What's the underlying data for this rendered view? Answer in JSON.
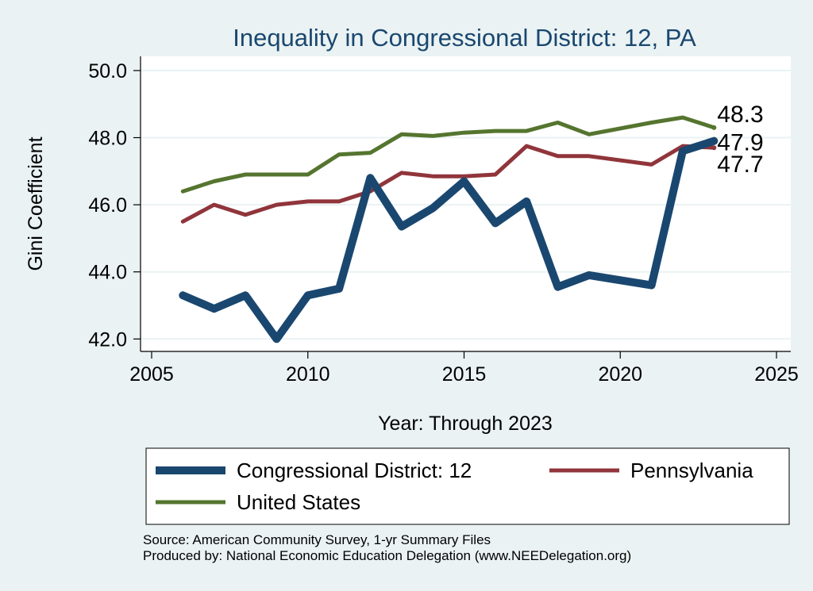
{
  "chart_data": {
    "type": "line",
    "title": "Inequality in Congressional District:  12, PA",
    "xlabel": "Year: Through 2023",
    "ylabel": "Gini Coefficient",
    "xlim": [
      2005,
      2025
    ],
    "ylim": [
      41.7,
      50.4
    ],
    "x_ticks": [
      2005,
      2010,
      2015,
      2020,
      2025
    ],
    "y_ticks": [
      42.0,
      44.0,
      46.0,
      48.0,
      50.0
    ],
    "y_tick_labels": [
      "42.0",
      "44.0",
      "46.0",
      "48.0",
      "50.0"
    ],
    "grid": true,
    "series": [
      {
        "name": "Congressional District:  12",
        "color": "#1a476f",
        "x": [
          2006,
          2007,
          2008,
          2009,
          2010,
          2011,
          2012,
          2013,
          2014,
          2015,
          2016,
          2017,
          2018,
          2019,
          2021,
          2022,
          2023
        ],
        "values": [
          43.3,
          42.9,
          43.3,
          42.0,
          43.3,
          43.5,
          46.8,
          45.35,
          45.9,
          46.7,
          45.45,
          46.1,
          43.55,
          43.9,
          43.6,
          47.6,
          47.9
        ],
        "end_label": "47.9"
      },
      {
        "name": "Pennsylvania",
        "color": "#90353b",
        "x": [
          2006,
          2007,
          2008,
          2009,
          2010,
          2011,
          2012,
          2013,
          2014,
          2015,
          2016,
          2017,
          2018,
          2019,
          2021,
          2022,
          2023
        ],
        "values": [
          45.5,
          46.0,
          45.7,
          46.0,
          46.1,
          46.1,
          46.4,
          46.95,
          46.85,
          46.85,
          46.9,
          47.75,
          47.45,
          47.45,
          47.2,
          47.75,
          47.7
        ],
        "end_label": "47.7"
      },
      {
        "name": "United States",
        "color": "#55752f",
        "x": [
          2006,
          2007,
          2008,
          2009,
          2010,
          2011,
          2012,
          2013,
          2014,
          2015,
          2016,
          2017,
          2018,
          2019,
          2021,
          2022,
          2023
        ],
        "values": [
          46.4,
          46.7,
          46.9,
          46.9,
          46.9,
          47.5,
          47.55,
          48.1,
          48.05,
          48.15,
          48.2,
          48.2,
          48.45,
          48.1,
          48.45,
          48.6,
          48.3
        ],
        "end_label": "48.3"
      }
    ],
    "legend": {
      "placement": "bottom",
      "entries": [
        "Congressional District:  12",
        "Pennsylvania",
        "United States"
      ]
    },
    "notes": [
      "Source: American Community Survey, 1-yr Summary Files",
      "Produced by: National Economic Education Delegation (www.NEEDelegation.org)"
    ]
  }
}
